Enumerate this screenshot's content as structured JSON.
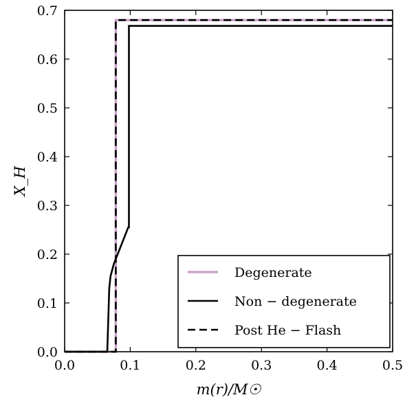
{
  "chart_data": {
    "type": "line",
    "xlabel": "m(r)/M☉",
    "ylabel": "X_H",
    "xlim": [
      0.0,
      0.5
    ],
    "ylim": [
      0.0,
      0.7
    ],
    "x_ticks": [
      0.0,
      0.1,
      0.2,
      0.3,
      0.4,
      0.5
    ],
    "x_tick_labels": [
      "0.0",
      "0.1",
      "0.2",
      "0.3",
      "0.4",
      "0.5"
    ],
    "y_ticks": [
      0.0,
      0.1,
      0.2,
      0.3,
      0.4,
      0.5,
      0.6,
      0.7
    ],
    "y_tick_labels": [
      "0.0",
      "0.1",
      "0.2",
      "0.3",
      "0.4",
      "0.5",
      "0.6",
      "0.7"
    ],
    "grid": false,
    "legend_position": "lower-right",
    "series": [
      {
        "name": "Degenerate",
        "color": "#c8a2c8",
        "style": "solid",
        "x": [
          0.0,
          0.078,
          0.078,
          0.5
        ],
        "y": [
          0.0,
          0.0,
          0.68,
          0.68
        ]
      },
      {
        "name": "Non − degenerate",
        "color": "#000000",
        "style": "solid",
        "x": [
          0.0,
          0.065,
          0.068,
          0.07,
          0.075,
          0.097,
          0.098,
          0.098,
          0.5
        ],
        "y": [
          0.0,
          0.0,
          0.13,
          0.155,
          0.18,
          0.255,
          0.255,
          0.668,
          0.668
        ]
      },
      {
        "name": "Post He − Flash",
        "color": "#000000",
        "style": "dashed",
        "x": [
          0.0,
          0.078,
          0.078,
          0.5
        ],
        "y": [
          0.0,
          0.0,
          0.68,
          0.68
        ]
      }
    ]
  }
}
